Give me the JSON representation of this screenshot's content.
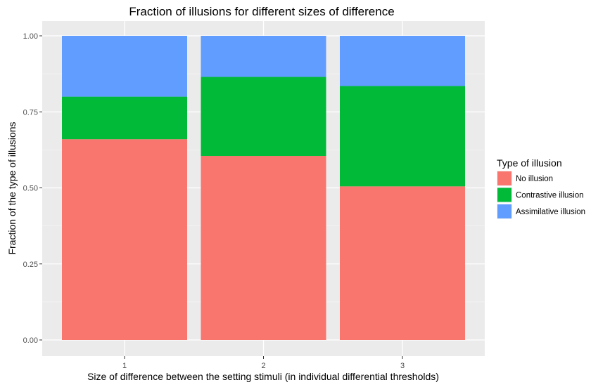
{
  "chart_data": {
    "type": "bar",
    "stacked": true,
    "title": "Fraction of illusions for different sizes of difference",
    "xlabel": "Size of difference between the setting stimuli (in individual differential thresholds)",
    "ylabel": "Fraction of the type of illusions",
    "categories": [
      "1",
      "2",
      "3"
    ],
    "ylim": [
      0,
      1
    ],
    "yticks": [
      "0.00",
      "0.25",
      "0.50",
      "0.75",
      "1.00"
    ],
    "ytick_values": [
      0,
      0.25,
      0.5,
      0.75,
      1.0
    ],
    "grid": true,
    "legend": {
      "title": "Type of illusion",
      "position": "right"
    },
    "series": [
      {
        "name": "No illusion",
        "color": "#F8766D",
        "values": [
          0.66,
          0.605,
          0.505
        ]
      },
      {
        "name": "Contrastive illusion",
        "color": "#00BA38",
        "values": [
          0.14,
          0.26,
          0.33
        ]
      },
      {
        "name": "Assimilative illusion",
        "color": "#619CFF",
        "values": [
          0.2,
          0.135,
          0.165
        ]
      }
    ]
  }
}
